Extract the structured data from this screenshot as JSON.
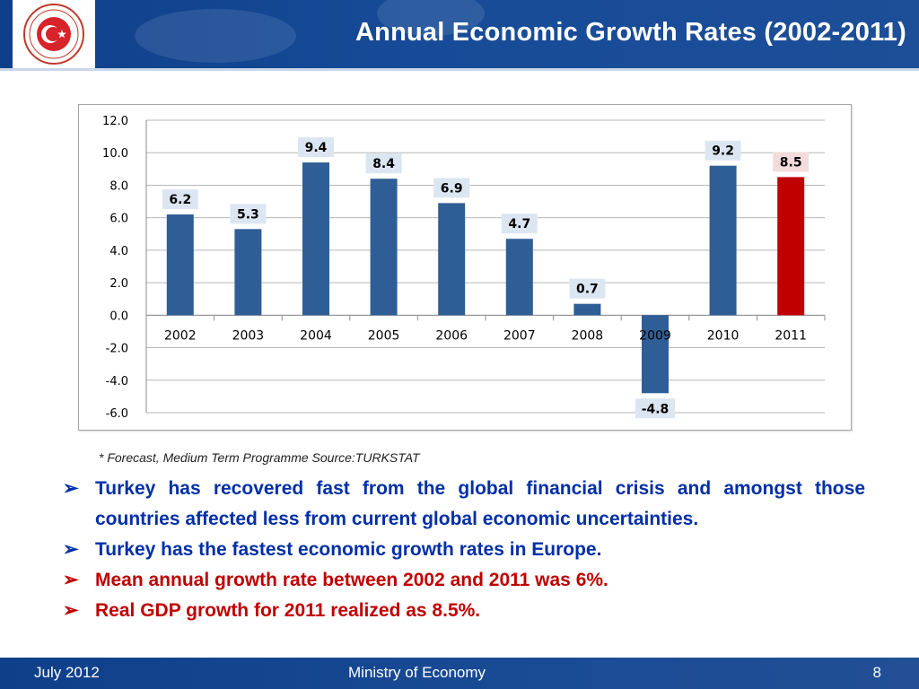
{
  "header": {
    "title": "Annual Economic Growth Rates (2002-2011)"
  },
  "colors": {
    "header_blue": "#174b97",
    "bar_blue": "#2f5e97",
    "bar_red": "#c00000",
    "text_blue": "#002fa7",
    "text_red": "#c00000"
  },
  "chart_data": {
    "type": "bar",
    "categories": [
      "2002",
      "2003",
      "2004",
      "2005",
      "2006",
      "2007",
      "2008",
      "2009",
      "2010",
      "2011"
    ],
    "values": [
      6.2,
      5.3,
      9.4,
      8.4,
      6.9,
      4.7,
      0.7,
      -4.8,
      9.2,
      8.5
    ],
    "data_labels": [
      "6.2",
      "5.3",
      "9.4",
      "8.4",
      "6.9",
      "4.7",
      "0.7",
      "-4.8",
      "9.2",
      "8.5"
    ],
    "highlight_category": "2011",
    "ylim": [
      -6.0,
      12.0
    ],
    "yticks": [
      "12.0",
      "10.0",
      "8.0",
      "6.0",
      "4.0",
      "2.0",
      "0.0",
      "-2.0",
      "-4.0",
      "-6.0"
    ],
    "grid": true,
    "legend": "none",
    "title": "",
    "xlabel": "",
    "ylabel": ""
  },
  "note": "* Forecast, Medium Term Programme Source:TURKSTAT",
  "bullets": [
    {
      "text": "Turkey has recovered fast from the global financial crisis and amongst those countries affected less from current global economic uncertainties.",
      "color": "blue"
    },
    {
      "text": "Turkey has the fastest economic growth rates in Europe.",
      "color": "blue"
    },
    {
      "text": "Mean annual growth rate between 2002 and 2011 was 6%.",
      "color": "red"
    },
    {
      "text": "Real GDP growth  for 2011 realized as 8.5%.",
      "color": "red"
    }
  ],
  "footer": {
    "date": "July 2012",
    "org": "Ministry of Economy",
    "page": "8"
  },
  "logo": {
    "text": "REPUBLIC OF TURKEY · MINISTRY OF ECONOMY"
  }
}
